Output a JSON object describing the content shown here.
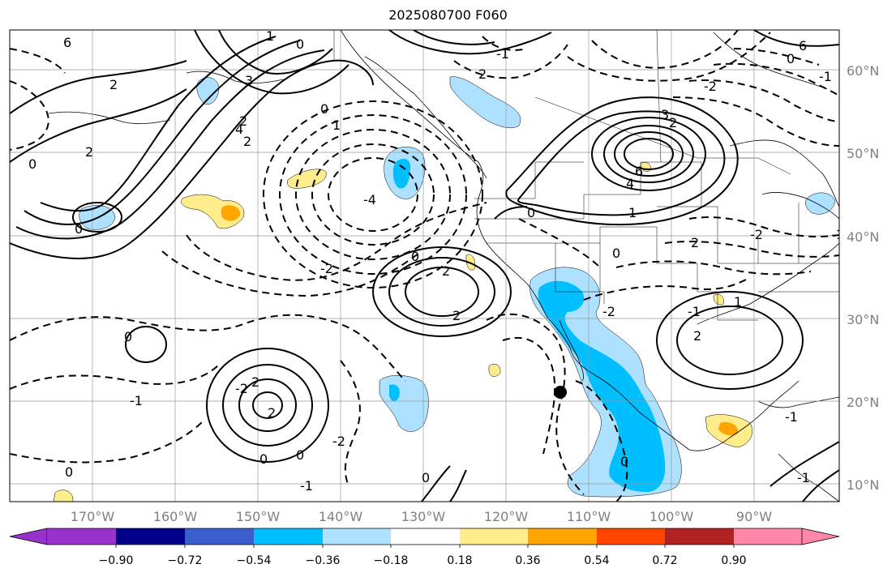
{
  "title": "2025080700 F060",
  "latitudes": [
    {
      "label": "60°N"
    },
    {
      "label": "50°N"
    },
    {
      "label": "40°N"
    },
    {
      "label": "30°N"
    },
    {
      "label": "20°N"
    },
    {
      "label": "10°N"
    }
  ],
  "longitudes": [
    {
      "label": "170°W"
    },
    {
      "label": "160°W"
    },
    {
      "label": "150°W"
    },
    {
      "label": "140°W"
    },
    {
      "label": "130°W"
    },
    {
      "label": "120°W"
    },
    {
      "label": "110°W"
    },
    {
      "label": "100°W"
    },
    {
      "label": "90°W"
    }
  ],
  "colorbar": {
    "colors": [
      "#9932cc",
      "#00008b",
      "#3a5fcd",
      "#00bfff",
      "#aee1ff",
      "#ffffff",
      "#ffec8b",
      "#ffa500",
      "#ff4500",
      "#b22222",
      "#ff88aa"
    ],
    "ticks": [
      "−0.90",
      "−0.72",
      "−0.54",
      "−0.36",
      "−0.18",
      "0.18",
      "0.36",
      "0.54",
      "0.72",
      "0.90"
    ]
  },
  "contour_labels": [
    "6",
    "2",
    "1",
    "0",
    "0",
    "1",
    "3",
    "2",
    "4",
    "6",
    "2",
    "-1",
    "-2",
    "0",
    "-4",
    "0",
    "2",
    "0",
    "2",
    "6",
    "4",
    "1",
    "0",
    "3",
    "2",
    "-1",
    "-1",
    "-2",
    "0",
    "2",
    "-2",
    "0",
    "0",
    "-2",
    "2",
    "2",
    "-2",
    "0",
    "2",
    "2",
    "-1",
    "-2",
    "2",
    "0",
    "-1",
    "-1",
    "-1",
    "0",
    "0",
    "-1",
    "1",
    "0"
  ],
  "marker": {
    "name": "black dot"
  }
}
